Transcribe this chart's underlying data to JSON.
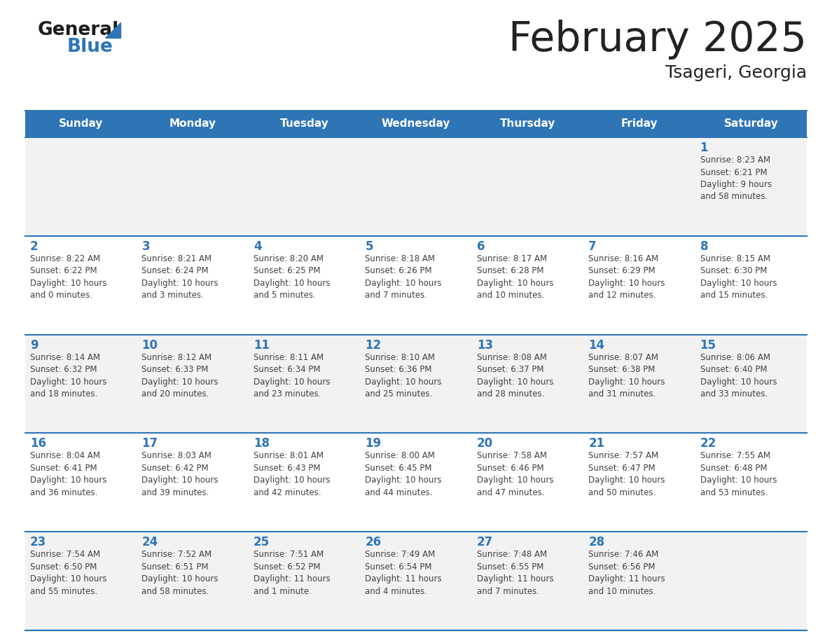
{
  "title": "February 2025",
  "subtitle": "Tsageri, Georgia",
  "header_color": "#2E75B6",
  "header_text_color": "#FFFFFF",
  "cell_bg_even": "#F2F2F2",
  "cell_bg_odd": "#FFFFFF",
  "day_number_color": "#2E75B6",
  "text_color": "#404040",
  "line_color": "#2E75B6",
  "title_color": "#222222",
  "days_of_week": [
    "Sunday",
    "Monday",
    "Tuesday",
    "Wednesday",
    "Thursday",
    "Friday",
    "Saturday"
  ],
  "weeks": [
    [
      {
        "day": null,
        "info": null
      },
      {
        "day": null,
        "info": null
      },
      {
        "day": null,
        "info": null
      },
      {
        "day": null,
        "info": null
      },
      {
        "day": null,
        "info": null
      },
      {
        "day": null,
        "info": null
      },
      {
        "day": "1",
        "info": "Sunrise: 8:23 AM\nSunset: 6:21 PM\nDaylight: 9 hours\nand 58 minutes."
      }
    ],
    [
      {
        "day": "2",
        "info": "Sunrise: 8:22 AM\nSunset: 6:22 PM\nDaylight: 10 hours\nand 0 minutes."
      },
      {
        "day": "3",
        "info": "Sunrise: 8:21 AM\nSunset: 6:24 PM\nDaylight: 10 hours\nand 3 minutes."
      },
      {
        "day": "4",
        "info": "Sunrise: 8:20 AM\nSunset: 6:25 PM\nDaylight: 10 hours\nand 5 minutes."
      },
      {
        "day": "5",
        "info": "Sunrise: 8:18 AM\nSunset: 6:26 PM\nDaylight: 10 hours\nand 7 minutes."
      },
      {
        "day": "6",
        "info": "Sunrise: 8:17 AM\nSunset: 6:28 PM\nDaylight: 10 hours\nand 10 minutes."
      },
      {
        "day": "7",
        "info": "Sunrise: 8:16 AM\nSunset: 6:29 PM\nDaylight: 10 hours\nand 12 minutes."
      },
      {
        "day": "8",
        "info": "Sunrise: 8:15 AM\nSunset: 6:30 PM\nDaylight: 10 hours\nand 15 minutes."
      }
    ],
    [
      {
        "day": "9",
        "info": "Sunrise: 8:14 AM\nSunset: 6:32 PM\nDaylight: 10 hours\nand 18 minutes."
      },
      {
        "day": "10",
        "info": "Sunrise: 8:12 AM\nSunset: 6:33 PM\nDaylight: 10 hours\nand 20 minutes."
      },
      {
        "day": "11",
        "info": "Sunrise: 8:11 AM\nSunset: 6:34 PM\nDaylight: 10 hours\nand 23 minutes."
      },
      {
        "day": "12",
        "info": "Sunrise: 8:10 AM\nSunset: 6:36 PM\nDaylight: 10 hours\nand 25 minutes."
      },
      {
        "day": "13",
        "info": "Sunrise: 8:08 AM\nSunset: 6:37 PM\nDaylight: 10 hours\nand 28 minutes."
      },
      {
        "day": "14",
        "info": "Sunrise: 8:07 AM\nSunset: 6:38 PM\nDaylight: 10 hours\nand 31 minutes."
      },
      {
        "day": "15",
        "info": "Sunrise: 8:06 AM\nSunset: 6:40 PM\nDaylight: 10 hours\nand 33 minutes."
      }
    ],
    [
      {
        "day": "16",
        "info": "Sunrise: 8:04 AM\nSunset: 6:41 PM\nDaylight: 10 hours\nand 36 minutes."
      },
      {
        "day": "17",
        "info": "Sunrise: 8:03 AM\nSunset: 6:42 PM\nDaylight: 10 hours\nand 39 minutes."
      },
      {
        "day": "18",
        "info": "Sunrise: 8:01 AM\nSunset: 6:43 PM\nDaylight: 10 hours\nand 42 minutes."
      },
      {
        "day": "19",
        "info": "Sunrise: 8:00 AM\nSunset: 6:45 PM\nDaylight: 10 hours\nand 44 minutes."
      },
      {
        "day": "20",
        "info": "Sunrise: 7:58 AM\nSunset: 6:46 PM\nDaylight: 10 hours\nand 47 minutes."
      },
      {
        "day": "21",
        "info": "Sunrise: 7:57 AM\nSunset: 6:47 PM\nDaylight: 10 hours\nand 50 minutes."
      },
      {
        "day": "22",
        "info": "Sunrise: 7:55 AM\nSunset: 6:48 PM\nDaylight: 10 hours\nand 53 minutes."
      }
    ],
    [
      {
        "day": "23",
        "info": "Sunrise: 7:54 AM\nSunset: 6:50 PM\nDaylight: 10 hours\nand 55 minutes."
      },
      {
        "day": "24",
        "info": "Sunrise: 7:52 AM\nSunset: 6:51 PM\nDaylight: 10 hours\nand 58 minutes."
      },
      {
        "day": "25",
        "info": "Sunrise: 7:51 AM\nSunset: 6:52 PM\nDaylight: 11 hours\nand 1 minute."
      },
      {
        "day": "26",
        "info": "Sunrise: 7:49 AM\nSunset: 6:54 PM\nDaylight: 11 hours\nand 4 minutes."
      },
      {
        "day": "27",
        "info": "Sunrise: 7:48 AM\nSunset: 6:55 PM\nDaylight: 11 hours\nand 7 minutes."
      },
      {
        "day": "28",
        "info": "Sunrise: 7:46 AM\nSunset: 6:56 PM\nDaylight: 11 hours\nand 10 minutes."
      },
      {
        "day": null,
        "info": null
      }
    ]
  ]
}
